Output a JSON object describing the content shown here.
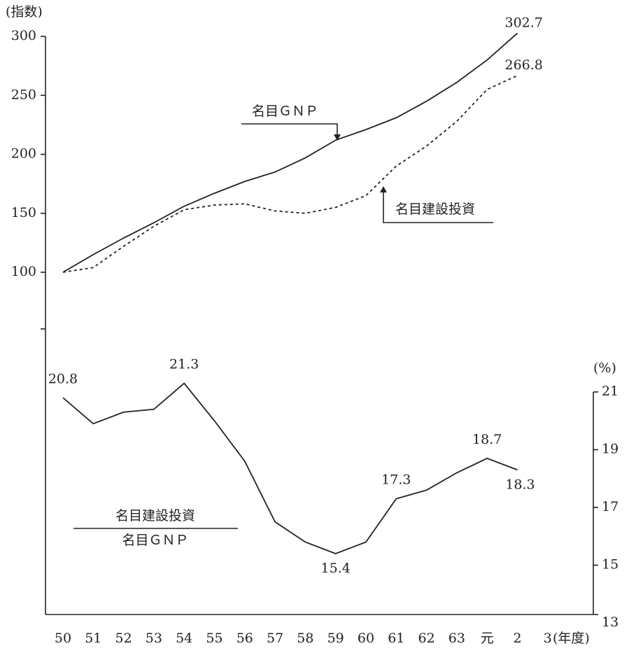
{
  "chart_data": {
    "type": "line",
    "y_label": "(指数)",
    "y2_label": "(%)",
    "x_label": "(年度)",
    "categories": [
      "50",
      "51",
      "52",
      "53",
      "54",
      "55",
      "56",
      "57",
      "58",
      "59",
      "60",
      "61",
      "62",
      "63",
      "元",
      "2",
      "3"
    ],
    "ylim": [
      100,
      300
    ],
    "yticks": [
      100,
      150,
      200,
      250,
      300
    ],
    "y2lim": [
      13,
      21
    ],
    "y2ticks": [
      13,
      15,
      17,
      19,
      21
    ],
    "series": [
      {
        "name": "名目ＧＮＰ",
        "color": "#222222",
        "dashed": false,
        "values": [
          100,
          115,
          129,
          142,
          156,
          167,
          177,
          185,
          197,
          212,
          221,
          231,
          245,
          261,
          280,
          302.7,
          null
        ],
        "value_labels": [
          null,
          null,
          null,
          null,
          null,
          null,
          null,
          null,
          null,
          null,
          null,
          null,
          null,
          null,
          null,
          "302.7",
          null
        ]
      },
      {
        "name": "名目建設投資",
        "color": "#222222",
        "dashed": true,
        "values": [
          100,
          104,
          122,
          139,
          153,
          157,
          158,
          152,
          150,
          155,
          165,
          190,
          207,
          228,
          255,
          266.8,
          null
        ],
        "value_labels": [
          null,
          null,
          null,
          null,
          null,
          null,
          null,
          null,
          null,
          null,
          null,
          null,
          null,
          null,
          null,
          "266.8",
          null
        ]
      },
      {
        "axis": "y2",
        "color": "#222222",
        "dashed": false,
        "values": [
          20.8,
          19.9,
          20.3,
          20.4,
          21.3,
          20.0,
          18.6,
          16.5,
          15.8,
          15.4,
          15.8,
          17.3,
          17.6,
          18.2,
          18.7,
          18.3,
          null
        ],
        "value_labels": [
          "20.8",
          null,
          null,
          null,
          "21.3",
          null,
          null,
          null,
          null,
          "15.4",
          null,
          "17.3",
          null,
          null,
          "18.7",
          "18.3",
          null
        ]
      }
    ],
    "ratio_label": {
      "numerator": "名目建設投資",
      "denominator": "名目ＧＮＰ"
    }
  }
}
